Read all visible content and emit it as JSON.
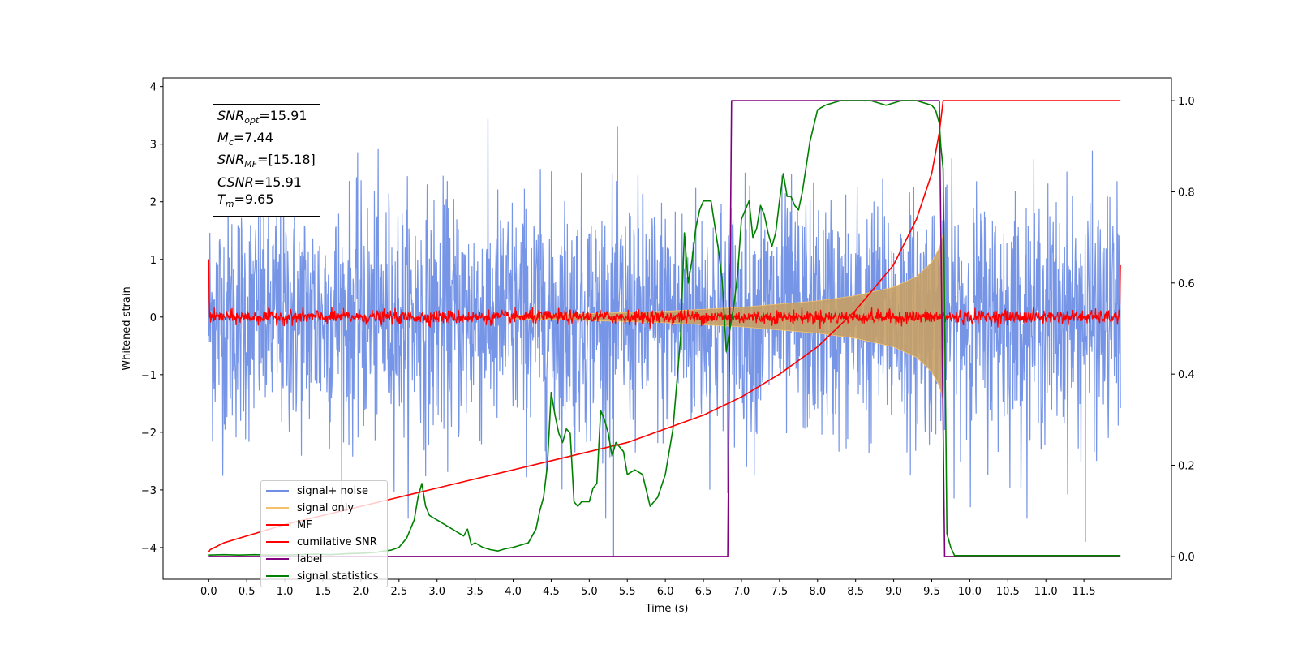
{
  "chart_data": {
    "type": "line",
    "title": "",
    "xlabel": "Time (s)",
    "ylabel": "Whitened strain",
    "xlim": [
      -0.6,
      12.65
    ],
    "ylim": [
      -4.55,
      4.15
    ],
    "y2lim": [
      -0.05,
      1.05
    ],
    "grid": false,
    "legend_position": "lower-left",
    "x_ticks": [
      0.0,
      0.5,
      1.0,
      1.5,
      2.0,
      2.5,
      3.0,
      3.5,
      4.0,
      4.5,
      5.0,
      5.5,
      6.0,
      6.5,
      7.0,
      7.5,
      8.0,
      8.5,
      9.0,
      9.5,
      10.0,
      10.5,
      11.0,
      11.5
    ],
    "x_tick_labels": [
      "0.0",
      "0.5",
      "1.0",
      "1.5",
      "2.0",
      "2.5",
      "3.0",
      "3.5",
      "4.0",
      "4.5",
      "5.0",
      "5.5",
      "6.0",
      "6.5",
      "7.0",
      "7.5",
      "8.0",
      "8.5",
      "9.0",
      "9.5",
      "10.0",
      "10.5",
      "11.0",
      "11.5"
    ],
    "y_ticks": [
      -4,
      -3,
      -2,
      -1,
      0,
      1,
      2,
      3,
      4
    ],
    "y_tick_labels": [
      "−4",
      "−3",
      "−2",
      "−1",
      "0",
      "1",
      "2",
      "3",
      "4"
    ],
    "y2_ticks": [
      0.0,
      0.2,
      0.4,
      0.6,
      0.8,
      1.0
    ],
    "y2_tick_labels": [
      "0.0",
      "0.2",
      "0.4",
      "0.6",
      "0.8",
      "1.0"
    ],
    "series": [
      {
        "name": "signal+ noise",
        "color": "#6f8fe6",
        "axis": "left",
        "kind": "noise",
        "x_range": [
          0.0,
          11.98
        ],
        "envelope_note": "dense gaussian noise band, peaks around ±3.4",
        "spike_points": {
          "x": [
            5.32,
            11.52
          ],
          "y": [
            -4.15,
            -3.9
          ]
        }
      },
      {
        "name": "signal only",
        "color": "#f5c26b",
        "axis": "left",
        "kind": "chirp",
        "merger_time": 9.65,
        "envelope": {
          "x": [
            4.0,
            5.0,
            6.0,
            7.0,
            8.0,
            8.5,
            9.0,
            9.3,
            9.5,
            9.6,
            9.65,
            9.68
          ],
          "y": [
            0.03,
            0.06,
            0.1,
            0.17,
            0.28,
            0.37,
            0.52,
            0.7,
            0.95,
            1.2,
            1.45,
            0.0
          ]
        }
      },
      {
        "name": "MF",
        "color": "#ff0000",
        "axis": "left",
        "kind": "mf",
        "x_range": [
          0.0,
          11.98
        ],
        "noise_level": 0.06,
        "edge_values": {
          "start": 1.0,
          "end": 0.9
        }
      },
      {
        "name": "cumilative SNR",
        "color": "#ff0000",
        "axis": "right",
        "x": [
          0.0,
          0.02,
          0.2,
          0.5,
          1.0,
          1.5,
          2.0,
          2.5,
          3.0,
          3.5,
          4.0,
          4.5,
          5.0,
          5.5,
          6.0,
          6.5,
          7.0,
          7.5,
          8.0,
          8.5,
          9.0,
          9.3,
          9.5,
          9.6,
          9.65,
          11.98
        ],
        "y": [
          0.01,
          0.015,
          0.03,
          0.045,
          0.07,
          0.09,
          0.11,
          0.13,
          0.15,
          0.17,
          0.19,
          0.21,
          0.23,
          0.25,
          0.28,
          0.31,
          0.35,
          0.4,
          0.46,
          0.54,
          0.64,
          0.74,
          0.84,
          0.93,
          1.0,
          1.0
        ]
      },
      {
        "name": "label",
        "color": "#800080",
        "axis": "right",
        "x": [
          0.0,
          6.82,
          6.87,
          9.6,
          9.67,
          11.98
        ],
        "y": [
          0.0,
          0.0,
          1.0,
          1.0,
          0.0,
          0.0
        ]
      },
      {
        "name": "signal statistics",
        "color": "#008000",
        "axis": "right",
        "x": [
          0.0,
          0.2,
          0.4,
          0.6,
          0.8,
          1.0,
          1.2,
          1.4,
          1.6,
          1.8,
          2.0,
          2.1,
          2.2,
          2.3,
          2.4,
          2.5,
          2.6,
          2.7,
          2.75,
          2.8,
          2.85,
          2.9,
          3.0,
          3.1,
          3.2,
          3.3,
          3.35,
          3.4,
          3.45,
          3.5,
          3.6,
          3.7,
          3.8,
          3.9,
          4.0,
          4.1,
          4.2,
          4.3,
          4.35,
          4.4,
          4.45,
          4.5,
          4.55,
          4.6,
          4.65,
          4.7,
          4.75,
          4.8,
          4.85,
          4.9,
          5.0,
          5.05,
          5.1,
          5.15,
          5.2,
          5.25,
          5.3,
          5.35,
          5.4,
          5.45,
          5.5,
          5.6,
          5.7,
          5.8,
          5.9,
          6.0,
          6.1,
          6.2,
          6.25,
          6.3,
          6.35,
          6.4,
          6.45,
          6.5,
          6.6,
          6.7,
          6.75,
          6.8,
          6.85,
          6.9,
          6.95,
          7.0,
          7.05,
          7.1,
          7.15,
          7.2,
          7.25,
          7.3,
          7.35,
          7.4,
          7.45,
          7.5,
          7.55,
          7.6,
          7.65,
          7.7,
          7.75,
          7.8,
          7.9,
          8.0,
          8.1,
          8.3,
          8.5,
          8.7,
          8.9,
          9.1,
          9.3,
          9.5,
          9.55,
          9.6,
          9.62,
          9.65,
          9.7,
          9.75,
          9.8,
          10.0,
          10.5,
          11.0,
          11.5,
          11.98
        ],
        "y": [
          0.003,
          0.004,
          0.003,
          0.004,
          0.003,
          0.003,
          0.004,
          0.005,
          0.004,
          0.006,
          0.007,
          0.008,
          0.009,
          0.012,
          0.014,
          0.02,
          0.04,
          0.08,
          0.13,
          0.16,
          0.11,
          0.09,
          0.08,
          0.07,
          0.06,
          0.05,
          0.045,
          0.06,
          0.025,
          0.03,
          0.02,
          0.015,
          0.012,
          0.017,
          0.02,
          0.025,
          0.03,
          0.06,
          0.1,
          0.13,
          0.2,
          0.36,
          0.31,
          0.27,
          0.25,
          0.28,
          0.27,
          0.12,
          0.11,
          0.12,
          0.12,
          0.15,
          0.16,
          0.32,
          0.3,
          0.27,
          0.22,
          0.25,
          0.24,
          0.23,
          0.18,
          0.19,
          0.18,
          0.11,
          0.13,
          0.18,
          0.28,
          0.48,
          0.71,
          0.6,
          0.65,
          0.72,
          0.76,
          0.78,
          0.78,
          0.67,
          0.6,
          0.45,
          0.5,
          0.55,
          0.62,
          0.74,
          0.76,
          0.78,
          0.7,
          0.72,
          0.77,
          0.75,
          0.71,
          0.68,
          0.71,
          0.78,
          0.84,
          0.79,
          0.79,
          0.77,
          0.76,
          0.8,
          0.91,
          0.98,
          0.99,
          1.0,
          1.0,
          1.0,
          0.99,
          1.0,
          1.0,
          0.99,
          0.98,
          0.95,
          0.9,
          0.85,
          0.05,
          0.02,
          0.002,
          0.002,
          0.002,
          0.002,
          0.002,
          0.002
        ]
      }
    ],
    "annotation": {
      "lines": [
        {
          "var": "SNR",
          "sub": "opt",
          "value": "=15.91"
        },
        {
          "var": "M",
          "sub": "c",
          "value": "=7.44"
        },
        {
          "var": "SNR",
          "sub": "MF",
          "value": "=[15.18]"
        },
        {
          "var": "CSNR",
          "sub": "",
          "value": "=15.91"
        },
        {
          "var": "T",
          "sub": "m",
          "value": "=9.65"
        }
      ]
    }
  }
}
